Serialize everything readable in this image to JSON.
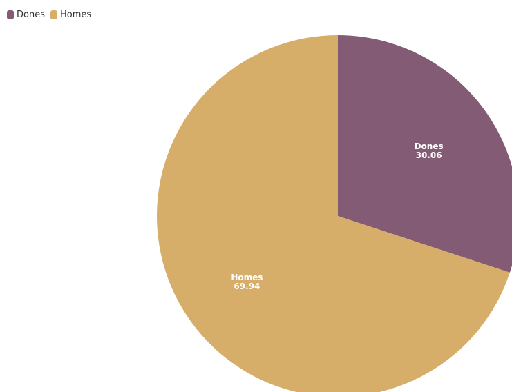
{
  "chart_data": {
    "type": "pie",
    "categories": [
      "Dones",
      "Homes"
    ],
    "values": [
      30.06,
      69.94
    ],
    "colors": [
      "#835b75",
      "#d6ad69"
    ],
    "legend": "top-left"
  }
}
